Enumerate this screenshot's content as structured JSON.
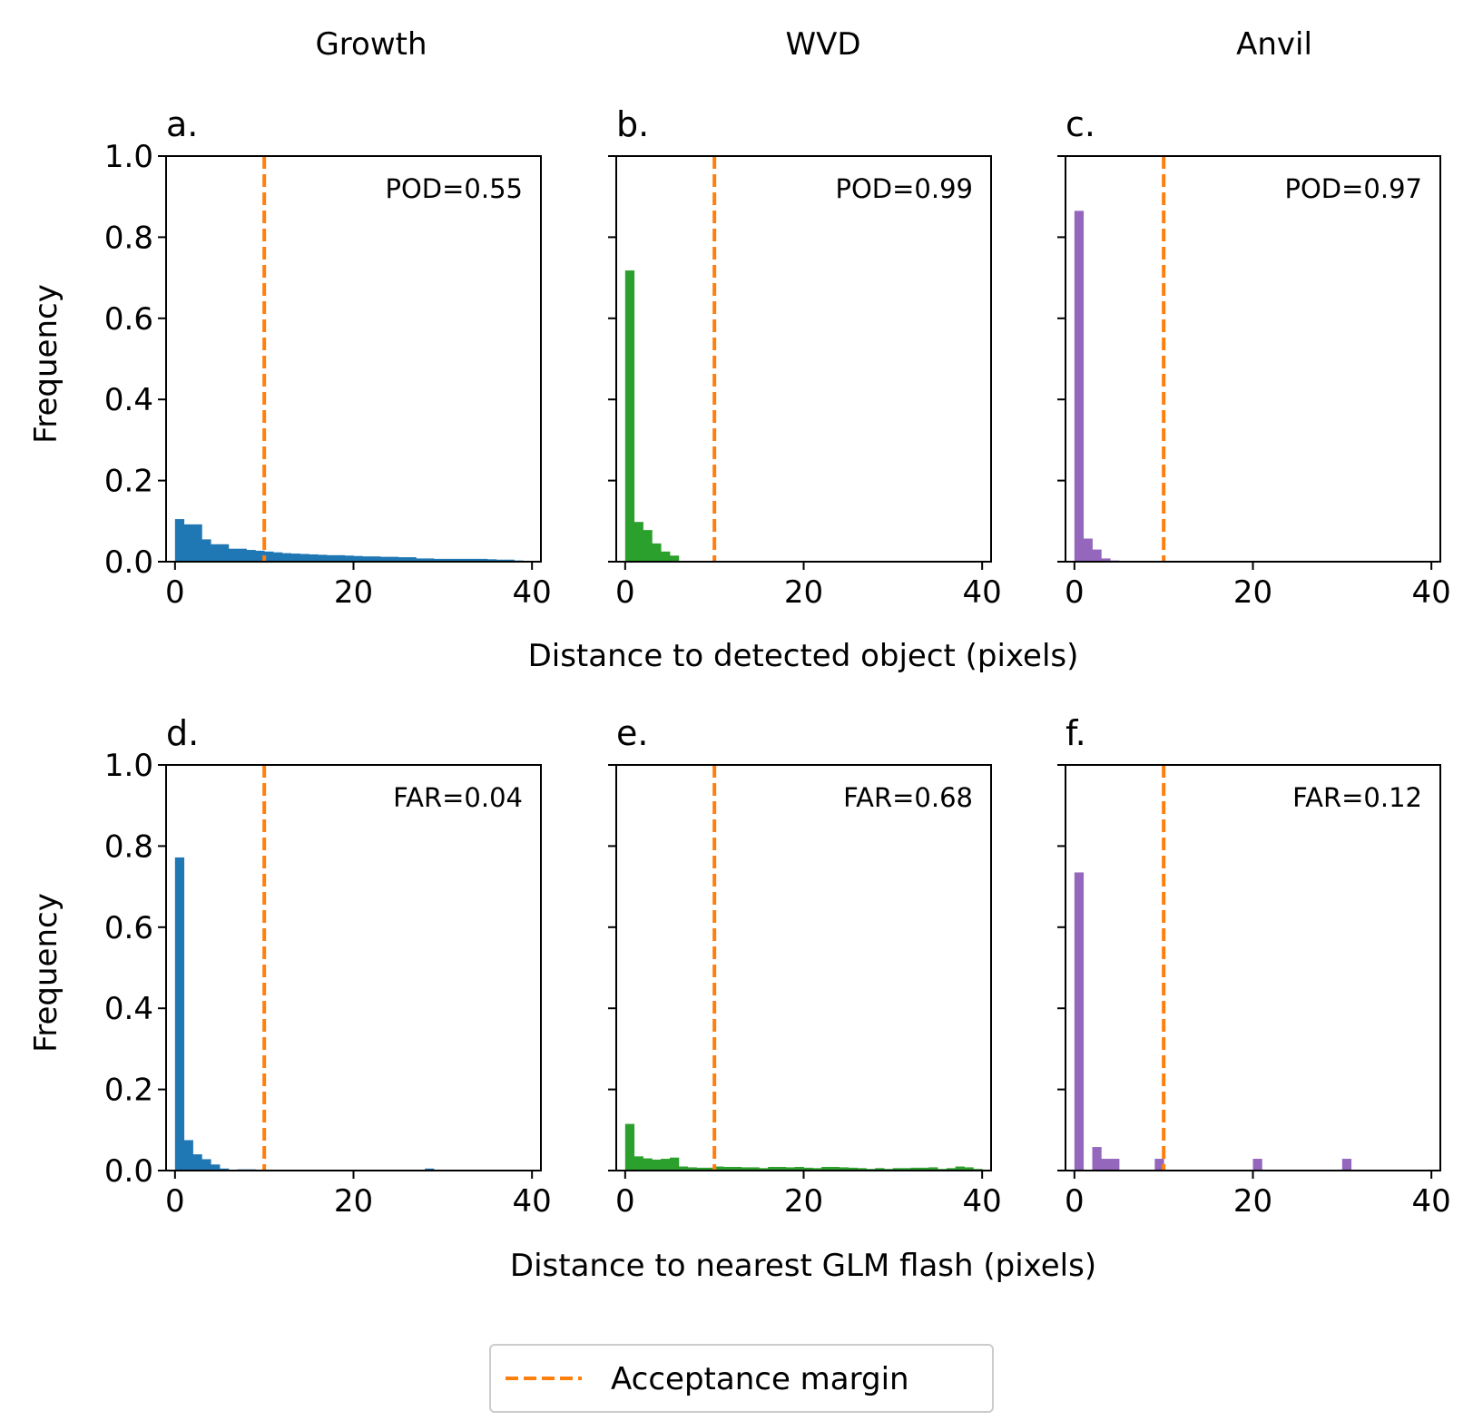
{
  "figure": {
    "column_titles": [
      "Growth",
      "WVD",
      "Anvil"
    ],
    "row_xlabels": [
      "Distance to detected object (pixels)",
      "Distance to nearest GLM flash (pixels)"
    ],
    "ylabel": "Frequency",
    "legend": {
      "label": "Acceptance margin",
      "color": "#ff7f0e",
      "style": "dashed",
      "placement": "bottom-center"
    }
  },
  "chart_data": [
    {
      "panel": "a.",
      "type": "bar",
      "column": "Growth",
      "row": 0,
      "color": "#1f77b4",
      "stat_label": "POD=0.55",
      "xlim": [
        -1,
        41
      ],
      "ylim": [
        0,
        1
      ],
      "xticks": [
        "0",
        "20",
        "40"
      ],
      "yticks": [
        "0.0",
        "0.2",
        "0.4",
        "0.6",
        "0.8",
        "1.0"
      ],
      "xlabel": "Distance to detected object (pixels)",
      "ylabel": "Frequency",
      "acceptance_margin": 10,
      "bin_width": 1,
      "bins": [
        0,
        1,
        2,
        3,
        4,
        5,
        6,
        7,
        8,
        9,
        10,
        11,
        12,
        13,
        14,
        15,
        16,
        17,
        18,
        19,
        20,
        21,
        22,
        23,
        24,
        25,
        26,
        27,
        28,
        29,
        30,
        31,
        32,
        33,
        34,
        35,
        36,
        37,
        38,
        39
      ],
      "values": [
        0.105,
        0.092,
        0.092,
        0.055,
        0.043,
        0.043,
        0.032,
        0.032,
        0.029,
        0.027,
        0.025,
        0.023,
        0.021,
        0.02,
        0.019,
        0.018,
        0.017,
        0.016,
        0.016,
        0.015,
        0.014,
        0.013,
        0.013,
        0.012,
        0.012,
        0.011,
        0.011,
        0.008,
        0.008,
        0.007,
        0.007,
        0.007,
        0.007,
        0.007,
        0.007,
        0.006,
        0.005,
        0.005,
        0.003,
        0.002
      ]
    },
    {
      "panel": "b.",
      "type": "bar",
      "column": "WVD",
      "row": 0,
      "color": "#2ca02c",
      "stat_label": "POD=0.99",
      "xlim": [
        -1,
        41
      ],
      "ylim": [
        0,
        1
      ],
      "xticks": [
        "0",
        "20",
        "40"
      ],
      "xlabel": "Distance to detected object (pixels)",
      "acceptance_margin": 10,
      "bin_width": 1,
      "bins": [
        0,
        1,
        2,
        3,
        4,
        5
      ],
      "values": [
        0.718,
        0.098,
        0.078,
        0.045,
        0.025,
        0.015
      ]
    },
    {
      "panel": "c.",
      "type": "bar",
      "column": "Anvil",
      "row": 0,
      "color": "#9467bd",
      "stat_label": "POD=0.97",
      "xlim": [
        -1,
        41
      ],
      "ylim": [
        0,
        1
      ],
      "xticks": [
        "0",
        "20",
        "40"
      ],
      "xlabel": "Distance to detected object (pixels)",
      "acceptance_margin": 10,
      "bin_width": 1,
      "bins": [
        0,
        1,
        2,
        3,
        4
      ],
      "values": [
        0.865,
        0.057,
        0.03,
        0.008,
        0.003
      ]
    },
    {
      "panel": "d.",
      "type": "bar",
      "column": "Growth",
      "row": 1,
      "color": "#1f77b4",
      "stat_label": "FAR=0.04",
      "xlim": [
        -1,
        41
      ],
      "ylim": [
        0,
        1
      ],
      "xticks": [
        "0",
        "20",
        "40"
      ],
      "yticks": [
        "0.0",
        "0.2",
        "0.4",
        "0.6",
        "0.8",
        "1.0"
      ],
      "xlabel": "Distance to nearest GLM flash (pixels)",
      "ylabel": "Frequency",
      "acceptance_margin": 10,
      "bin_width": 1,
      "bins": [
        0,
        1,
        2,
        3,
        4,
        5,
        7,
        8,
        28
      ],
      "values": [
        0.772,
        0.075,
        0.04,
        0.028,
        0.015,
        0.005,
        0.003,
        0.003,
        0.005
      ]
    },
    {
      "panel": "e.",
      "type": "bar",
      "column": "WVD",
      "row": 1,
      "color": "#2ca02c",
      "stat_label": "FAR=0.68",
      "xlim": [
        -1,
        41
      ],
      "ylim": [
        0,
        1
      ],
      "xticks": [
        "0",
        "20",
        "40"
      ],
      "xlabel": "Distance to nearest GLM flash (pixels)",
      "acceptance_margin": 10,
      "bin_width": 1,
      "bins": [
        0,
        1,
        2,
        3,
        4,
        5,
        6,
        7,
        8,
        9,
        10,
        11,
        12,
        13,
        14,
        15,
        16,
        17,
        18,
        19,
        20,
        21,
        22,
        23,
        24,
        25,
        26,
        27,
        28,
        29,
        30,
        31,
        32,
        33,
        34,
        35,
        36,
        37,
        38,
        39
      ],
      "values": [
        0.115,
        0.035,
        0.03,
        0.027,
        0.029,
        0.032,
        0.01,
        0.008,
        0.007,
        0.007,
        0.01,
        0.009,
        0.009,
        0.008,
        0.008,
        0.006,
        0.009,
        0.009,
        0.008,
        0.009,
        0.007,
        0.006,
        0.009,
        0.009,
        0.008,
        0.007,
        0.006,
        0.004,
        0.006,
        0.004,
        0.006,
        0.006,
        0.007,
        0.007,
        0.008,
        0.004,
        0.006,
        0.01,
        0.008,
        0.004
      ]
    },
    {
      "panel": "f.",
      "type": "bar",
      "column": "Anvil",
      "row": 1,
      "color": "#9467bd",
      "stat_label": "FAR=0.12",
      "xlim": [
        -1,
        41
      ],
      "ylim": [
        0,
        1
      ],
      "xticks": [
        "0",
        "20",
        "40"
      ],
      "xlabel": "Distance to nearest GLM flash (pixels)",
      "acceptance_margin": 10,
      "bin_width": 1,
      "bins": [
        0,
        2,
        3,
        4,
        9,
        20,
        30
      ],
      "values": [
        0.735,
        0.058,
        0.029,
        0.029,
        0.029,
        0.029,
        0.029
      ]
    }
  ]
}
